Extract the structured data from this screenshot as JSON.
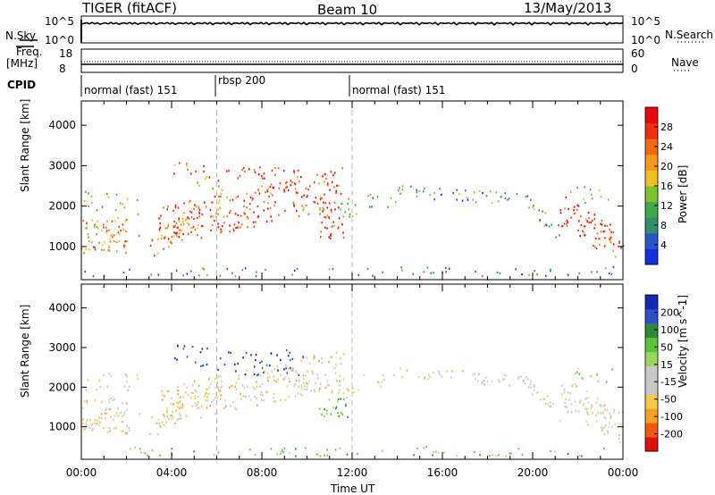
{
  "header": {
    "left": "TIGER (fitACF)",
    "center": "Beam 10",
    "right": "13/May/2013"
  },
  "small_panels": {
    "nsky_label": "N.Sky",
    "nsky_ticks": [
      "10^5",
      "10^0"
    ],
    "nsky_right_ticks": [
      "10^5",
      "10^0"
    ],
    "nsearch_label": "N.Search",
    "freq_label_1": "Freq.",
    "freq_label_2": "[MHz]",
    "freq_ticks": [
      "18",
      "8"
    ],
    "nave_ticks": [
      "60",
      "0"
    ],
    "nave_label": "Nave",
    "cpid_label": "CPID",
    "cpid_segments": [
      "normal (fast) 151",
      "rbsp 200",
      "normal (fast) 151"
    ]
  },
  "colors": {
    "power_scale": [
      "#1030e0",
      "#2a55c8",
      "#2f8f6e",
      "#3fa84a",
      "#7dc22a",
      "#f0c020",
      "#f39a1a",
      "#f06a12",
      "#ee3010",
      "#e80a0a"
    ],
    "velocity_scale": [
      "#e01010",
      "#ee5a10",
      "#f5a020",
      "#f5c74a",
      "#c8c8c8",
      "#c8c8c8",
      "#9ad65a",
      "#5cc43a",
      "#2e8a3a",
      "#3050c8",
      "#1428b0"
    ]
  },
  "chart_data": [
    {
      "type": "heatmap",
      "title": "",
      "ylabel": "Slant Range [km]",
      "xlabel": "",
      "ylim": [
        180,
        4600
      ],
      "y_ticks": [
        "4000",
        "3000",
        "2000",
        "1000"
      ],
      "x_ticks": [],
      "colorbar_label": "Power [dB]",
      "colorbar_ticks": [
        "28",
        "24",
        "20",
        "16",
        "12",
        "8",
        "4"
      ],
      "grid": false
    },
    {
      "type": "heatmap",
      "title": "",
      "ylabel": "Slant Range [km]",
      "xlabel": "Time UT",
      "ylim": [
        180,
        4600
      ],
      "y_ticks": [
        "4000",
        "3000",
        "2000",
        "1000"
      ],
      "x_ticks": [
        "00:00",
        "04:00",
        "08:00",
        "12:00",
        "16:00",
        "20:00",
        "00:00"
      ],
      "colorbar_label": "Velocity [m s^-1]",
      "colorbar_ticks": [
        "200",
        "100",
        "50",
        "15",
        "-15",
        "-50",
        "-100",
        "-200"
      ],
      "grid": false
    }
  ]
}
